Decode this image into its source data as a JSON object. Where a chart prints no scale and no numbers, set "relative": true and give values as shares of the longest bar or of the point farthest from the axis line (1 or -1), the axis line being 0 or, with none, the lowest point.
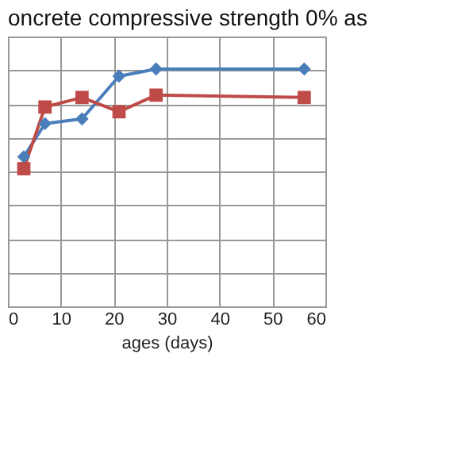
{
  "chart_data": {
    "type": "line",
    "title": "oncrete compressive strength  0% as",
    "xlabel": "ages  (days)",
    "relative": true,
    "xlim": [
      0,
      60
    ],
    "xticks": [
      0,
      10,
      20,
      30,
      40,
      50,
      60
    ],
    "grid": true,
    "marker": "diamond",
    "line_style": "solid",
    "series": [
      {
        "color": "#4a7ebb",
        "marker": "diamond",
        "x": [
          3,
          7,
          14,
          21,
          28,
          56
        ],
        "values": [
          0.63,
          0.77,
          0.79,
          0.97,
          1,
          1
        ]
      },
      {
        "color": "#be4b48",
        "marker": "square",
        "x": [
          3,
          7,
          14,
          21,
          28,
          56
        ],
        "values": [
          0.58,
          0.84,
          0.88,
          0.82,
          0.89,
          0.88
        ]
      }
    ]
  }
}
